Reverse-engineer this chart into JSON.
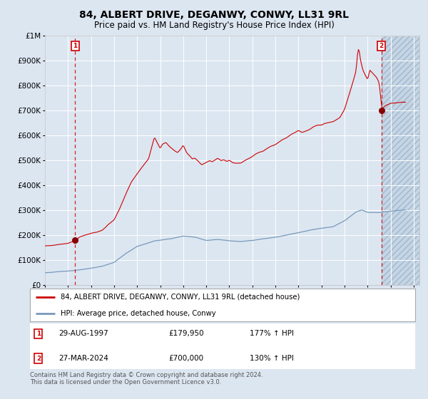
{
  "title": "84, ALBERT DRIVE, DEGANWY, CONWY, LL31 9RL",
  "subtitle": "Price paid vs. HM Land Registry's House Price Index (HPI)",
  "title_fontsize": 10,
  "subtitle_fontsize": 8.5,
  "red_label": "84, ALBERT DRIVE, DEGANWY, CONWY, LL31 9RL (detached house)",
  "blue_label": "HPI: Average price, detached house, Conwy",
  "point1_date": "29-AUG-1997",
  "point1_price": 179950,
  "point1_hpi": "177% ↑ HPI",
  "point2_date": "27-MAR-2024",
  "point2_price": 700000,
  "point2_hpi": "130% ↑ HPI",
  "footnote": "Contains HM Land Registry data © Crown copyright and database right 2024.\nThis data is licensed under the Open Government Licence v3.0.",
  "ylim": [
    0,
    1000000
  ],
  "xlim_start": 1995.0,
  "xlim_end": 2027.5,
  "bg_color": "#dce6f1",
  "grid_color": "#ffffff",
  "red_line_color": "#cc0000",
  "blue_line_color": "#7799bb",
  "point_color": "#880000",
  "vline_color": "#cc0000",
  "hpi_anchors": [
    [
      1995.0,
      50000
    ],
    [
      1996.0,
      54000
    ],
    [
      1997.0,
      57000
    ],
    [
      1998.0,
      63000
    ],
    [
      1999.0,
      70000
    ],
    [
      2000.0,
      78000
    ],
    [
      2001.0,
      93000
    ],
    [
      2002.0,
      128000
    ],
    [
      2003.0,
      158000
    ],
    [
      2004.0,
      173000
    ],
    [
      2004.5,
      180000
    ],
    [
      2005.0,
      183000
    ],
    [
      2006.0,
      190000
    ],
    [
      2007.0,
      200000
    ],
    [
      2008.0,
      196000
    ],
    [
      2009.0,
      183000
    ],
    [
      2010.0,
      188000
    ],
    [
      2011.0,
      183000
    ],
    [
      2012.0,
      181000
    ],
    [
      2013.0,
      185000
    ],
    [
      2014.0,
      193000
    ],
    [
      2015.0,
      198000
    ],
    [
      2016.0,
      208000
    ],
    [
      2017.0,
      218000
    ],
    [
      2018.0,
      228000
    ],
    [
      2019.0,
      236000
    ],
    [
      2020.0,
      242000
    ],
    [
      2021.0,
      265000
    ],
    [
      2022.0,
      300000
    ],
    [
      2022.5,
      308000
    ],
    [
      2023.0,
      298000
    ],
    [
      2024.0,
      296000
    ],
    [
      2024.25,
      298000
    ],
    [
      2025.0,
      302000
    ],
    [
      2026.5,
      308000
    ]
  ],
  "red_anchors": [
    [
      1995.0,
      158000
    ],
    [
      1995.5,
      160000
    ],
    [
      1996.0,
      163000
    ],
    [
      1996.5,
      165000
    ],
    [
      1997.0,
      167000
    ],
    [
      1997.67,
      179950
    ],
    [
      1998.0,
      193000
    ],
    [
      1998.5,
      200000
    ],
    [
      1999.0,
      207000
    ],
    [
      1999.5,
      213000
    ],
    [
      2000.0,
      222000
    ],
    [
      2000.5,
      245000
    ],
    [
      2001.0,
      263000
    ],
    [
      2001.5,
      310000
    ],
    [
      2002.0,
      365000
    ],
    [
      2002.5,
      415000
    ],
    [
      2003.0,
      448000
    ],
    [
      2003.5,
      478000
    ],
    [
      2004.0,
      508000
    ],
    [
      2004.3,
      560000
    ],
    [
      2004.5,
      593000
    ],
    [
      2004.7,
      575000
    ],
    [
      2005.0,
      548000
    ],
    [
      2005.2,
      565000
    ],
    [
      2005.5,
      572000
    ],
    [
      2005.8,
      555000
    ],
    [
      2006.0,
      548000
    ],
    [
      2006.2,
      540000
    ],
    [
      2006.5,
      530000
    ],
    [
      2006.8,
      545000
    ],
    [
      2007.0,
      560000
    ],
    [
      2007.3,
      530000
    ],
    [
      2007.5,
      520000
    ],
    [
      2007.8,
      505000
    ],
    [
      2008.0,
      508000
    ],
    [
      2008.3,
      495000
    ],
    [
      2008.6,
      480000
    ],
    [
      2009.0,
      490000
    ],
    [
      2009.3,
      498000
    ],
    [
      2009.5,
      492000
    ],
    [
      2009.8,
      502000
    ],
    [
      2010.0,
      508000
    ],
    [
      2010.3,
      498000
    ],
    [
      2010.5,
      502000
    ],
    [
      2010.8,
      495000
    ],
    [
      2011.0,
      500000
    ],
    [
      2011.3,
      490000
    ],
    [
      2011.6,
      488000
    ],
    [
      2012.0,
      490000
    ],
    [
      2012.3,
      498000
    ],
    [
      2012.6,
      505000
    ],
    [
      2013.0,
      515000
    ],
    [
      2013.3,
      525000
    ],
    [
      2013.6,
      532000
    ],
    [
      2014.0,
      538000
    ],
    [
      2014.3,
      548000
    ],
    [
      2014.6,
      555000
    ],
    [
      2015.0,
      562000
    ],
    [
      2015.3,
      572000
    ],
    [
      2015.6,
      582000
    ],
    [
      2016.0,
      590000
    ],
    [
      2016.3,
      600000
    ],
    [
      2016.6,
      608000
    ],
    [
      2017.0,
      618000
    ],
    [
      2017.3,
      610000
    ],
    [
      2017.6,
      615000
    ],
    [
      2018.0,
      622000
    ],
    [
      2018.3,
      632000
    ],
    [
      2018.6,
      638000
    ],
    [
      2019.0,
      638000
    ],
    [
      2019.3,
      645000
    ],
    [
      2019.6,
      648000
    ],
    [
      2020.0,
      652000
    ],
    [
      2020.3,
      660000
    ],
    [
      2020.6,
      668000
    ],
    [
      2021.0,
      700000
    ],
    [
      2021.3,
      745000
    ],
    [
      2021.6,
      790000
    ],
    [
      2022.0,
      855000
    ],
    [
      2022.15,
      935000
    ],
    [
      2022.25,
      945000
    ],
    [
      2022.4,
      895000
    ],
    [
      2022.6,
      858000
    ],
    [
      2022.8,
      838000
    ],
    [
      2023.0,
      820000
    ],
    [
      2023.2,
      858000
    ],
    [
      2023.4,
      848000
    ],
    [
      2023.6,
      838000
    ],
    [
      2023.8,
      828000
    ],
    [
      2024.0,
      808000
    ],
    [
      2024.25,
      700000
    ],
    [
      2024.5,
      715000
    ],
    [
      2025.0,
      725000
    ],
    [
      2026.0,
      730000
    ]
  ],
  "year_ticks": [
    1995,
    1997,
    1999,
    2001,
    2003,
    2005,
    2007,
    2009,
    2011,
    2013,
    2015,
    2017,
    2019,
    2021,
    2023,
    2025,
    2027
  ]
}
